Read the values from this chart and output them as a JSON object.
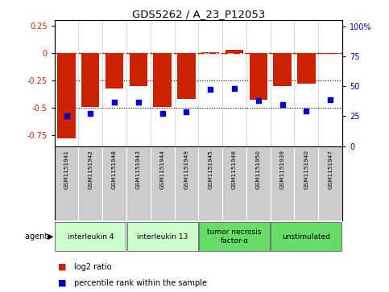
{
  "title": "GDS5262 / A_23_P12053",
  "samples": [
    "GSM1151941",
    "GSM1151942",
    "GSM1151948",
    "GSM1151943",
    "GSM1151944",
    "GSM1151949",
    "GSM1151945",
    "GSM1151946",
    "GSM1151950",
    "GSM1151939",
    "GSM1151940",
    "GSM1151947"
  ],
  "log2_ratio": [
    -0.78,
    -0.49,
    -0.32,
    -0.3,
    -0.49,
    -0.42,
    0.01,
    0.03,
    -0.43,
    -0.3,
    -0.28,
    -0.01
  ],
  "percentile": [
    24,
    26,
    35,
    35,
    26,
    27,
    45,
    46,
    36,
    33,
    28,
    37
  ],
  "agents": [
    {
      "label": "interleukin 4",
      "start": 0,
      "end": 2,
      "color": "#ccffcc"
    },
    {
      "label": "interleukin 13",
      "start": 3,
      "end": 5,
      "color": "#ccffcc"
    },
    {
      "label": "tumor necrosis\nfactor-α",
      "start": 6,
      "end": 8,
      "color": "#66dd66"
    },
    {
      "label": "unstimulated",
      "start": 9,
      "end": 11,
      "color": "#66dd66"
    }
  ],
  "ylim_left": [
    -0.85,
    0.3
  ],
  "ylim_right": [
    0,
    105
  ],
  "yticks_left": [
    -0.75,
    -0.5,
    -0.25,
    0,
    0.25
  ],
  "yticks_right": [
    0,
    25,
    50,
    75,
    100
  ],
  "bar_color": "#cc2200",
  "dot_color": "#0000cc",
  "zero_line_color": "#cc2200",
  "hline_color": "#000000",
  "bg_color": "#ffffff",
  "sample_box_color": "#cccccc",
  "legend_items": [
    {
      "color": "#cc2200",
      "label": "log2 ratio"
    },
    {
      "color": "#0000cc",
      "label": "percentile rank within the sample"
    }
  ]
}
